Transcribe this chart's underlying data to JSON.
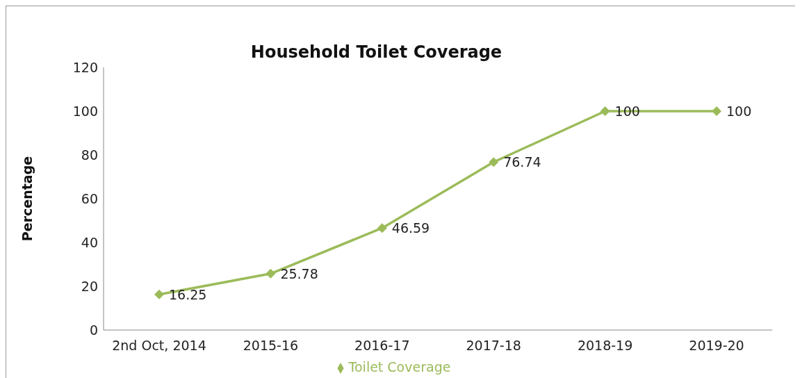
{
  "chart_data": {
    "type": "line",
    "title": "Household Toilet Coverage",
    "ylabel": "Percentage",
    "categories": [
      "2nd Oct, 2014",
      "2015-16",
      "2016-17",
      "2017-18",
      "2018-19",
      "2019-20"
    ],
    "series": [
      {
        "name": "Toilet Coverage",
        "color": "#9bbb59",
        "values": [
          16.25,
          25.78,
          46.59,
          76.74,
          100,
          100
        ]
      }
    ],
    "ylim": [
      0,
      120
    ],
    "yticks": [
      0,
      20,
      40,
      60,
      80,
      100,
      120
    ],
    "grid": false,
    "legend": "bottom",
    "marker": "diamond",
    "data_labels": true
  }
}
